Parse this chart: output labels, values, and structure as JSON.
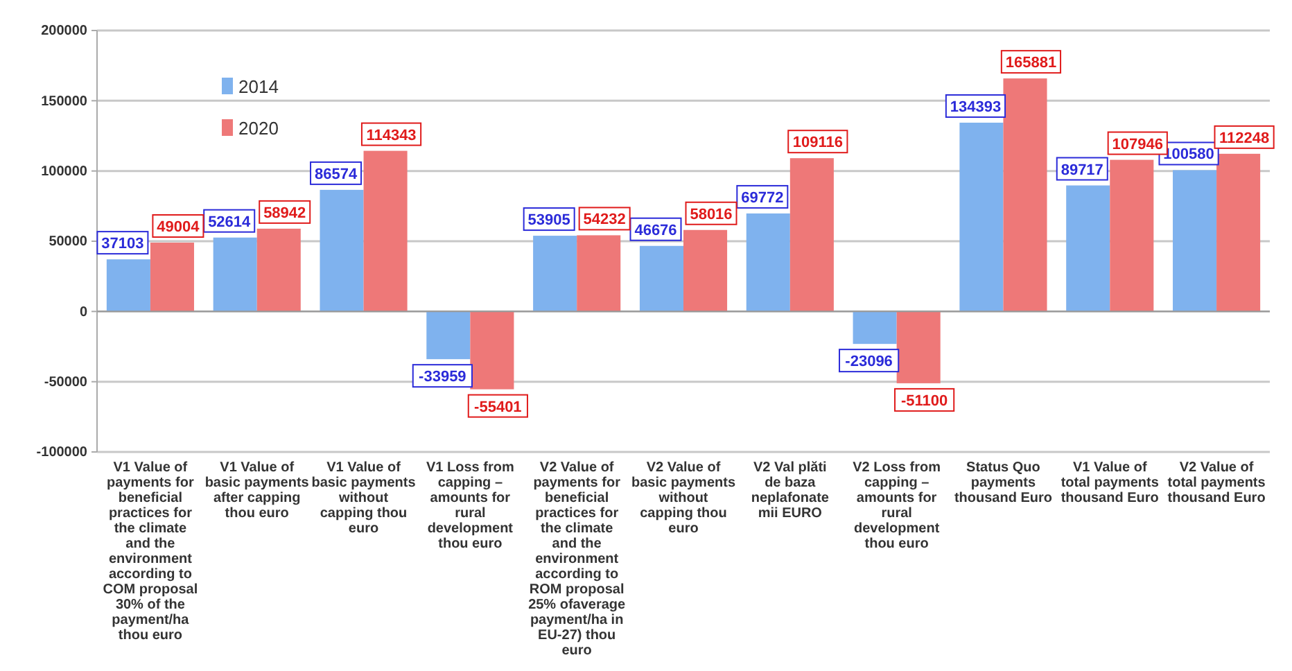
{
  "chart_data": {
    "type": "bar",
    "categories": [
      "V1 Value of payments for beneficial practices for the climate and the environment according to COM proposal 30% of the payment/ha thou euro",
      "V1 Value of basic payments after capping thou euro",
      "V1 Value of basic payments without capping thou euro",
      "V1 Loss from capping – amounts for rural development thou euro",
      "V2 Value of payments for beneficial practices for the climate and the environment according to ROM proposal 25% ofaverage payment/ha in EU-27) thou euro",
      "V2 Value of basic payments without capping thou euro",
      "V2 Val plăti de baza neplafonate mii EURO",
      "V2 Loss from capping – amounts for rural development thou euro",
      "Status Quo payments thousand Euro",
      "V1 Value of total payments thousand Euro",
      "V2 Value of total payments thousand Euro"
    ],
    "series": [
      {
        "name": "2014",
        "color": "#7fb2ee",
        "values": [
          37103,
          52614,
          86574,
          -33959,
          53905,
          46676,
          69772,
          -23096,
          134393,
          89717,
          100580
        ]
      },
      {
        "name": "2020",
        "color": "#ee7878",
        "values": [
          49004,
          58942,
          114343,
          -55401,
          54232,
          58016,
          109116,
          -51100,
          165881,
          107946,
          112248
        ]
      }
    ],
    "ylim": [
      -100000,
      200000
    ],
    "yticks": [
      -100000,
      -50000,
      0,
      50000,
      100000,
      150000,
      200000
    ],
    "grid": "y",
    "legend": "top left",
    "data_labels": true
  }
}
